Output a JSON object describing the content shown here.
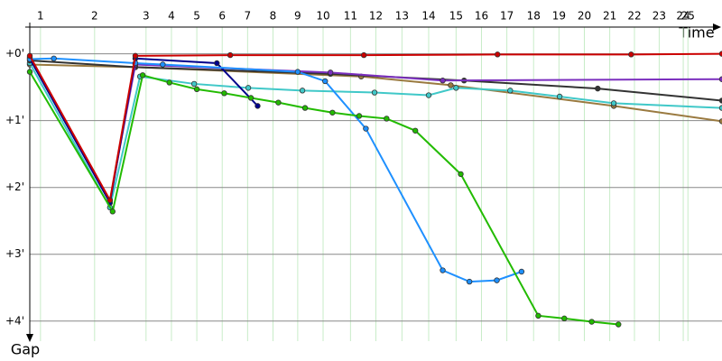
{
  "chart_data": {
    "type": "line",
    "xlabel": "Time",
    "ylabel": "Gap",
    "xlim": [
      0,
      10.36
    ],
    "ylim": [
      -0.4,
      4.3
    ],
    "xticks": [
      {
        "value": 0.16,
        "label": "1"
      },
      {
        "value": 0.97,
        "label": "2"
      },
      {
        "value": 1.74,
        "label": "3"
      },
      {
        "value": 2.12,
        "label": "4"
      },
      {
        "value": 2.5,
        "label": "5"
      },
      {
        "value": 2.88,
        "label": "6"
      },
      {
        "value": 3.26,
        "label": "7"
      },
      {
        "value": 3.64,
        "label": "8"
      },
      {
        "value": 4.01,
        "label": "9"
      },
      {
        "value": 4.39,
        "label": "10"
      },
      {
        "value": 4.8,
        "label": "11"
      },
      {
        "value": 5.18,
        "label": "12"
      },
      {
        "value": 5.57,
        "label": "13"
      },
      {
        "value": 5.97,
        "label": "14"
      },
      {
        "value": 6.38,
        "label": "15"
      },
      {
        "value": 6.76,
        "label": "16"
      },
      {
        "value": 7.14,
        "label": "17"
      },
      {
        "value": 7.54,
        "label": "18"
      },
      {
        "value": 7.92,
        "label": "19"
      },
      {
        "value": 8.3,
        "label": "20"
      },
      {
        "value": 8.68,
        "label": "21"
      },
      {
        "value": 9.05,
        "label": "22"
      },
      {
        "value": 9.42,
        "label": "23"
      },
      {
        "value": 9.78,
        "label": "24"
      },
      {
        "value": 9.85,
        "label": "25"
      }
    ],
    "yticks": [
      {
        "value": 0,
        "label": "+0'"
      },
      {
        "value": 1,
        "label": "+1'"
      },
      {
        "value": 2,
        "label": "+2'"
      },
      {
        "value": 3,
        "label": "+3'"
      },
      {
        "value": 4,
        "label": "+4'"
      }
    ],
    "grid": true,
    "series": [
      {
        "color": "#9a7a40",
        "x": [
          0,
          1.58,
          4.96,
          6.3,
          8.74,
          10.36
        ],
        "values": [
          0.16,
          0.2,
          0.34,
          0.47,
          0.78,
          1.01
        ]
      },
      {
        "color": "#40c8c8",
        "x": [
          0,
          1.2,
          1.65,
          2.46,
          3.27,
          4.08,
          5.16,
          5.97,
          6.38,
          7.19,
          7.93,
          8.74,
          10.36
        ],
        "values": [
          0.14,
          2.3,
          0.34,
          0.45,
          0.51,
          0.55,
          0.58,
          0.62,
          0.51,
          0.55,
          0.64,
          0.74,
          0.81
        ]
      },
      {
        "color": "#333333",
        "x": [
          0,
          1.58,
          4.5,
          6.5,
          8.5,
          10.36
        ],
        "values": [
          0.1,
          0.2,
          0.3,
          0.4,
          0.52,
          0.7
        ]
      },
      {
        "color": "#7b2fbe",
        "x": [
          0,
          1.2,
          1.58,
          4.5,
          6.18,
          10.36
        ],
        "values": [
          0.05,
          2.2,
          0.16,
          0.28,
          0.4,
          0.38
        ]
      },
      {
        "color": "#00008b",
        "x": [
          0,
          1.2,
          1.58,
          2.8,
          3.41
        ],
        "values": [
          0.07,
          2.23,
          0.07,
          0.14,
          0.78
        ]
      },
      {
        "color": "#1e90ff",
        "x": [
          0,
          0.36,
          1.58,
          1.99,
          4.01,
          4.42,
          5.03,
          6.18,
          6.58,
          6.99,
          7.36
        ],
        "values": [
          0.08,
          0.07,
          0.14,
          0.16,
          0.27,
          0.41,
          1.12,
          3.24,
          3.41,
          3.39,
          3.26
        ]
      },
      {
        "color": "#cc0000",
        "x": [
          0,
          1.2,
          1.58,
          3,
          5,
          7,
          9,
          10.36
        ],
        "values": [
          0.03,
          2.19,
          0.03,
          0.02,
          0.02,
          0.01,
          0.01,
          0
        ]
      },
      {
        "color": "#22bb00",
        "x": [
          0,
          1.24,
          1.69,
          2.09,
          2.5,
          2.91,
          3.31,
          3.72,
          4.12,
          4.53,
          4.93,
          5.34,
          5.77,
          6.45,
          7.61,
          8.0,
          8.41,
          8.81
        ],
        "values": [
          0.27,
          2.36,
          0.32,
          0.43,
          0.53,
          0.59,
          0.66,
          0.73,
          0.81,
          0.88,
          0.93,
          0.97,
          1.15,
          1.8,
          3.92,
          3.96,
          4.01,
          4.05
        ]
      }
    ]
  }
}
